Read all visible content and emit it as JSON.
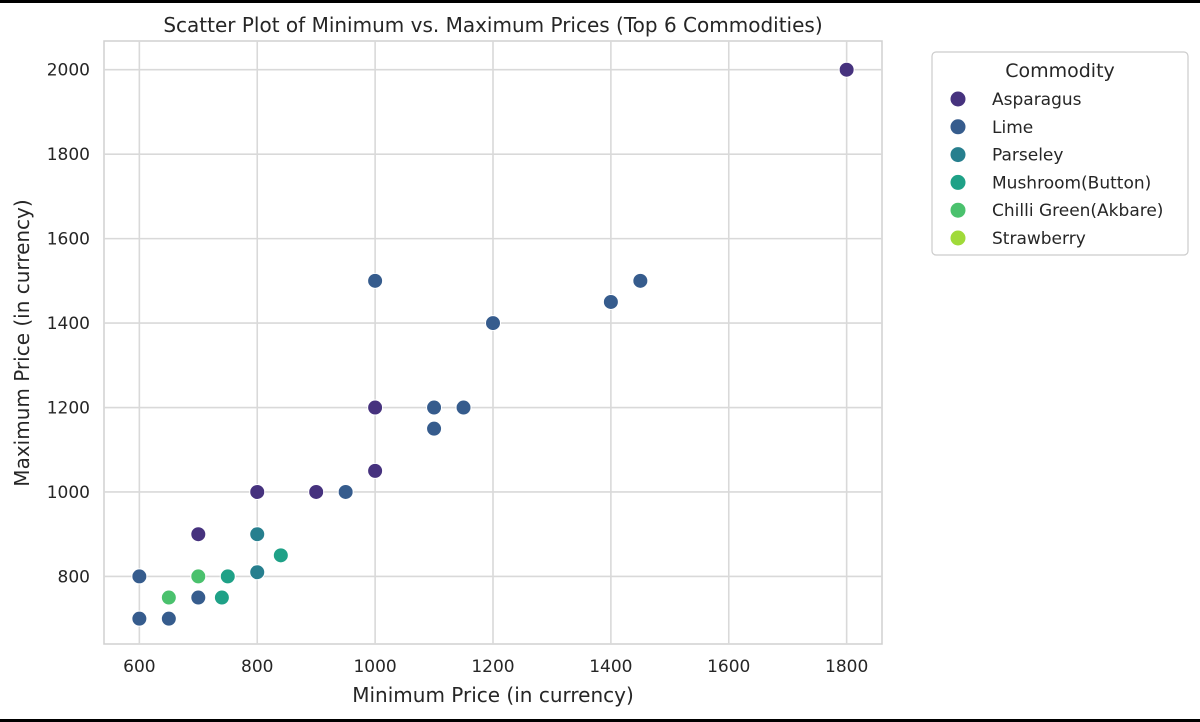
{
  "chart_data": {
    "type": "scatter",
    "title": "Scatter Plot of Minimum vs. Maximum Prices (Top 6 Commodities)",
    "xlabel": "Minimum Price (in currency)",
    "ylabel": "Maximum Price (in currency)",
    "xlim": [
      540,
      1860
    ],
    "ylim": [
      640,
      2068
    ],
    "xticks": [
      600,
      800,
      1000,
      1200,
      1400,
      1600,
      1800
    ],
    "yticks": [
      800,
      1000,
      1200,
      1400,
      1600,
      1800,
      2000
    ],
    "grid": true,
    "legend": {
      "title": "Commodity",
      "position": "outside-right"
    },
    "series": [
      {
        "name": "Asparagus",
        "color": "#46327e",
        "points": [
          [
            1800,
            2000
          ],
          [
            1000,
            1200
          ],
          [
            1000,
            1050
          ],
          [
            800,
            1000
          ],
          [
            900,
            1000
          ],
          [
            700,
            900
          ]
        ]
      },
      {
        "name": "Lime",
        "color": "#365c8d",
        "points": [
          [
            1000,
            1500
          ],
          [
            1450,
            1500
          ],
          [
            1400,
            1450
          ],
          [
            1200,
            1400
          ],
          [
            1100,
            1200
          ],
          [
            1150,
            1200
          ],
          [
            1100,
            1150
          ],
          [
            950,
            1000
          ],
          [
            600,
            800
          ],
          [
            700,
            750
          ],
          [
            600,
            700
          ],
          [
            650,
            700
          ]
        ]
      },
      {
        "name": "Parseley",
        "color": "#277f8e",
        "points": [
          [
            800,
            900
          ],
          [
            800,
            810
          ]
        ]
      },
      {
        "name": "Mushroom(Button)",
        "color": "#1fa187",
        "points": [
          [
            840,
            850
          ],
          [
            750,
            800
          ],
          [
            740,
            750
          ]
        ]
      },
      {
        "name": "Chilli Green(Akbare)",
        "color": "#4ac16d",
        "points": [
          [
            700,
            800
          ],
          [
            650,
            750
          ]
        ]
      },
      {
        "name": "Strawberry",
        "color": "#a0da39",
        "points": []
      }
    ]
  }
}
